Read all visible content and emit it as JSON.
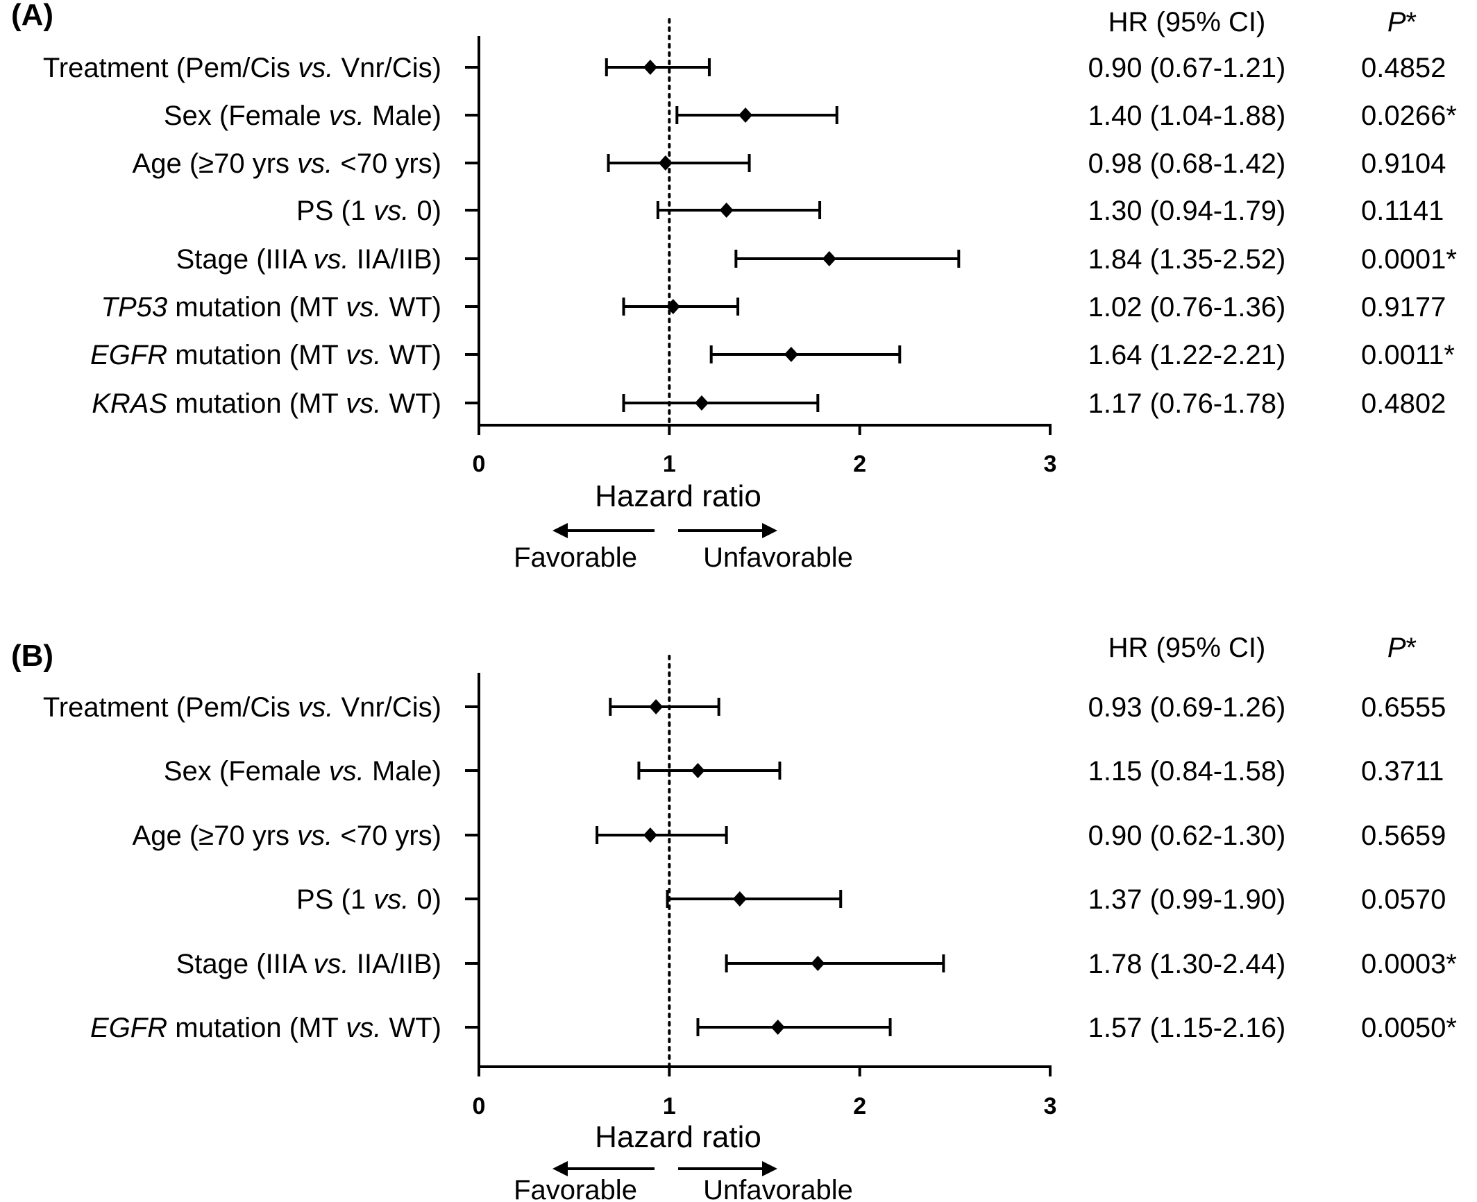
{
  "chart_data": [
    {
      "type": "forest",
      "panel_label": "(A)",
      "xlabel": "Hazard ratio",
      "xlim": [
        0,
        3
      ],
      "xticks": [
        "0",
        "1",
        "2",
        "3"
      ],
      "reference_line": 1,
      "direction_labels": {
        "left": "Favorable",
        "right": "Unfavorable"
      },
      "column_headers": {
        "hr": "HR (95% CI)",
        "p_main": "P",
        "p_suffix": "*"
      },
      "rows": [
        {
          "label_parts": [
            {
              "t": "Treatment (Pem/Cis "
            },
            {
              "t": "vs.",
              "i": true
            },
            {
              "t": " Vnr/Cis)"
            }
          ],
          "hr": 0.9,
          "lo": 0.67,
          "hi": 1.21,
          "hr_text": "0.90 (0.67-1.21)",
          "p_text": "0.4852"
        },
        {
          "label_parts": [
            {
              "t": "Sex (Female "
            },
            {
              "t": "vs.",
              "i": true
            },
            {
              "t": " Male)"
            }
          ],
          "hr": 1.4,
          "lo": 1.04,
          "hi": 1.88,
          "hr_text": "1.40 (1.04-1.88)",
          "p_text": "0.0266*"
        },
        {
          "label_parts": [
            {
              "t": "Age (≥70 yrs "
            },
            {
              "t": "vs.",
              "i": true
            },
            {
              "t": " <70 yrs)"
            }
          ],
          "hr": 0.98,
          "lo": 0.68,
          "hi": 1.42,
          "hr_text": "0.98 (0.68-1.42)",
          "p_text": "0.9104"
        },
        {
          "label_parts": [
            {
              "t": "PS (1 "
            },
            {
              "t": "vs.",
              "i": true
            },
            {
              "t": " 0)"
            }
          ],
          "hr": 1.3,
          "lo": 0.94,
          "hi": 1.79,
          "hr_text": "1.30 (0.94-1.79)",
          "p_text": "0.1141"
        },
        {
          "label_parts": [
            {
              "t": "Stage (IIIA "
            },
            {
              "t": "vs.",
              "i": true
            },
            {
              "t": " IIA/IIB)"
            }
          ],
          "hr": 1.84,
          "lo": 1.35,
          "hi": 2.52,
          "hr_text": "1.84 (1.35-2.52)",
          "p_text": "0.0001*"
        },
        {
          "label_parts": [
            {
              "t": "TP53",
              "i": true
            },
            {
              "t": " mutation (MT "
            },
            {
              "t": "vs.",
              "i": true
            },
            {
              "t": " WT)"
            }
          ],
          "hr": 1.02,
          "lo": 0.76,
          "hi": 1.36,
          "hr_text": "1.02 (0.76-1.36)",
          "p_text": "0.9177"
        },
        {
          "label_parts": [
            {
              "t": "EGFR",
              "i": true
            },
            {
              "t": " mutation (MT "
            },
            {
              "t": "vs.",
              "i": true
            },
            {
              "t": " WT)"
            }
          ],
          "hr": 1.64,
          "lo": 1.22,
          "hi": 2.21,
          "hr_text": "1.64 (1.22-2.21)",
          "p_text": "0.0011*"
        },
        {
          "label_parts": [
            {
              "t": "KRAS",
              "i": true
            },
            {
              "t": " mutation (MT "
            },
            {
              "t": "vs.",
              "i": true
            },
            {
              "t": " WT)"
            }
          ],
          "hr": 1.17,
          "lo": 0.76,
          "hi": 1.78,
          "hr_text": "1.17 (0.76-1.78)",
          "p_text": "0.4802"
        }
      ]
    },
    {
      "type": "forest",
      "panel_label": "(B)",
      "xlabel": "Hazard ratio",
      "xlim": [
        0,
        3
      ],
      "xticks": [
        "0",
        "1",
        "2",
        "3"
      ],
      "reference_line": 1,
      "direction_labels": {
        "left": "Favorable",
        "right": "Unfavorable"
      },
      "column_headers": {
        "hr": "HR (95% CI)",
        "p_main": "P",
        "p_suffix": "*"
      },
      "rows": [
        {
          "label_parts": [
            {
              "t": "Treatment (Pem/Cis "
            },
            {
              "t": "vs.",
              "i": true
            },
            {
              "t": " Vnr/Cis)"
            }
          ],
          "hr": 0.93,
          "lo": 0.69,
          "hi": 1.26,
          "hr_text": "0.93 (0.69-1.26)",
          "p_text": "0.6555"
        },
        {
          "label_parts": [
            {
              "t": "Sex (Female "
            },
            {
              "t": "vs.",
              "i": true
            },
            {
              "t": " Male)"
            }
          ],
          "hr": 1.15,
          "lo": 0.84,
          "hi": 1.58,
          "hr_text": "1.15 (0.84-1.58)",
          "p_text": "0.3711"
        },
        {
          "label_parts": [
            {
              "t": "Age (≥70 yrs "
            },
            {
              "t": "vs.",
              "i": true
            },
            {
              "t": " <70 yrs)"
            }
          ],
          "hr": 0.9,
          "lo": 0.62,
          "hi": 1.3,
          "hr_text": "0.90 (0.62-1.30)",
          "p_text": "0.5659"
        },
        {
          "label_parts": [
            {
              "t": "PS (1 "
            },
            {
              "t": "vs.",
              "i": true
            },
            {
              "t": " 0)"
            }
          ],
          "hr": 1.37,
          "lo": 0.99,
          "hi": 1.9,
          "hr_text": "1.37 (0.99-1.90)",
          "p_text": "0.0570"
        },
        {
          "label_parts": [
            {
              "t": "Stage (IIIA "
            },
            {
              "t": "vs.",
              "i": true
            },
            {
              "t": " IIA/IIB)"
            }
          ],
          "hr": 1.78,
          "lo": 1.3,
          "hi": 2.44,
          "hr_text": "1.78 (1.30-2.44)",
          "p_text": "0.0003*"
        },
        {
          "label_parts": [
            {
              "t": "EGFR",
              "i": true
            },
            {
              "t": " mutation (MT "
            },
            {
              "t": "vs.",
              "i": true
            },
            {
              "t": " WT)"
            }
          ],
          "hr": 1.57,
          "lo": 1.15,
          "hi": 2.16,
          "hr_text": "1.57 (1.15-2.16)",
          "p_text": "0.0050*"
        }
      ]
    }
  ]
}
